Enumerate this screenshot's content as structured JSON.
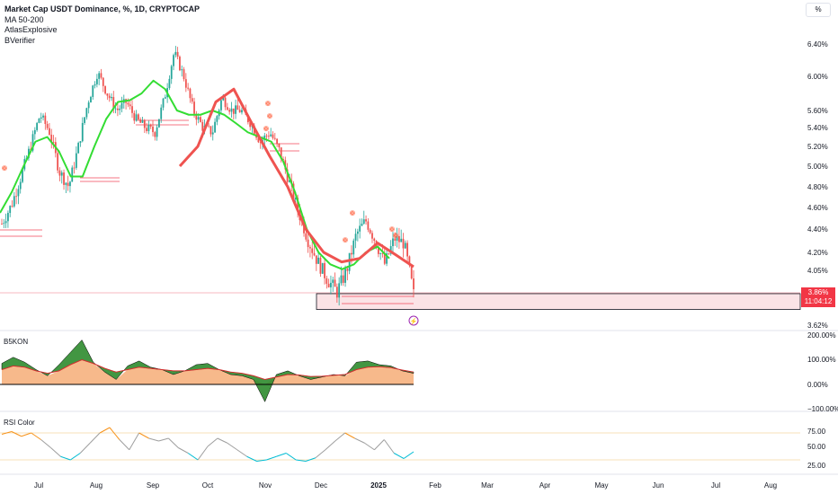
{
  "header": {
    "title": "Market Cap USDT Dominance, %, 1D, CRYPTOCAP",
    "indicators": [
      "MA 50-200",
      "AtlasExplosive",
      "BVerifier"
    ]
  },
  "scale_button": "%",
  "price_tag": {
    "value": "3.86%",
    "countdown": "11:04:12"
  },
  "colors": {
    "up": "#26a69a",
    "down": "#ef5350",
    "ma_fast": "#33dd33",
    "ma_slow": "#ef5350",
    "zone_fill": "#fbe3e6",
    "zone_border": "#131722",
    "osc_fill": "#f7b98b",
    "osc_green": "#2e8b2e",
    "rsi_up": "#f7931a",
    "rsi_mid": "#9e9e9e",
    "rsi_down": "#00bcd4",
    "price_tag": "#f23645"
  },
  "chart_data": [
    {
      "type": "candlestick",
      "title": "Market Cap USDT Dominance, %, 1D, CRYPTOCAP",
      "series": [
        {
          "name": "MA 50-200"
        }
      ],
      "x_ticks": [
        "Jul",
        "Aug",
        "Sep",
        "Oct",
        "Nov",
        "Dec",
        "2025",
        "Feb",
        "Mar",
        "Apr",
        "May",
        "Jun",
        "Jul",
        "Aug"
      ],
      "y_ticks": [
        "6.40%",
        "6.00%",
        "5.60%",
        "5.40%",
        "5.20%",
        "5.00%",
        "4.80%",
        "4.60%",
        "4.40%",
        "4.20%",
        "4.05%",
        "3.62%"
      ],
      "close_path": [
        4.45,
        4.62,
        4.9,
        5.2,
        5.55,
        5.35,
        4.95,
        4.8,
        5.2,
        5.7,
        6.05,
        5.8,
        5.6,
        5.7,
        5.5,
        5.4,
        5.35,
        5.75,
        6.3,
        6.0,
        5.6,
        5.4,
        5.35,
        5.75,
        5.6,
        5.6,
        5.45,
        5.25,
        5.35,
        5.15,
        4.85,
        4.55,
        4.3,
        4.12,
        3.98,
        3.88,
        4.05,
        4.35,
        4.48,
        4.3,
        4.1,
        4.32,
        4.28,
        3.86
      ],
      "ma_fast_path": [
        4.55,
        4.75,
        5.0,
        5.25,
        5.3,
        5.15,
        4.9,
        4.9,
        5.2,
        5.5,
        5.7,
        5.72,
        5.8,
        5.95,
        5.85,
        5.6,
        5.55,
        5.55,
        5.6,
        5.55,
        5.45,
        5.35,
        5.3,
        5.25,
        5.05,
        4.75,
        4.4,
        4.2,
        4.1,
        4.06,
        4.1,
        4.2,
        4.25,
        4.15
      ],
      "ma_slow_path": [
        5.0,
        5.2,
        5.7,
        5.85,
        5.45,
        5.1,
        4.8,
        4.4,
        4.2,
        4.12,
        4.15,
        4.28,
        4.18,
        4.08
      ],
      "zone_pct": [
        3.86,
        3.75
      ],
      "last_value": "3.86%"
    },
    {
      "type": "area",
      "title": "B5KON",
      "y_ticks": [
        "200.00%",
        "100.00%",
        "0.00%",
        "−100.00%"
      ],
      "values": [
        85,
        110,
        90,
        60,
        35,
        80,
        130,
        180,
        90,
        50,
        20,
        75,
        95,
        70,
        60,
        40,
        55,
        80,
        85,
        60,
        40,
        35,
        20,
        -70,
        40,
        55,
        35,
        20,
        30,
        40,
        35,
        90,
        95,
        80,
        75,
        55,
        45
      ],
      "signal": [
        60,
        75,
        70,
        55,
        45,
        55,
        80,
        100,
        85,
        65,
        50,
        60,
        70,
        65,
        60,
        55,
        55,
        60,
        65,
        60,
        50,
        45,
        35,
        20,
        30,
        40,
        38,
        32,
        33,
        37,
        40,
        60,
        70,
        72,
        68,
        58,
        50
      ]
    },
    {
      "type": "line",
      "title": "RSI Color",
      "y_ticks": [
        "75.00",
        "50.00",
        "25.00"
      ],
      "levels": [
        70,
        30
      ],
      "values": [
        68,
        72,
        65,
        70,
        60,
        48,
        35,
        30,
        40,
        55,
        70,
        78,
        60,
        45,
        70,
        62,
        58,
        62,
        48,
        40,
        30,
        50,
        62,
        55,
        45,
        35,
        28,
        30,
        35,
        40,
        30,
        28,
        33,
        45,
        58,
        70,
        62,
        55,
        45,
        60,
        40,
        32,
        42
      ]
    }
  ]
}
